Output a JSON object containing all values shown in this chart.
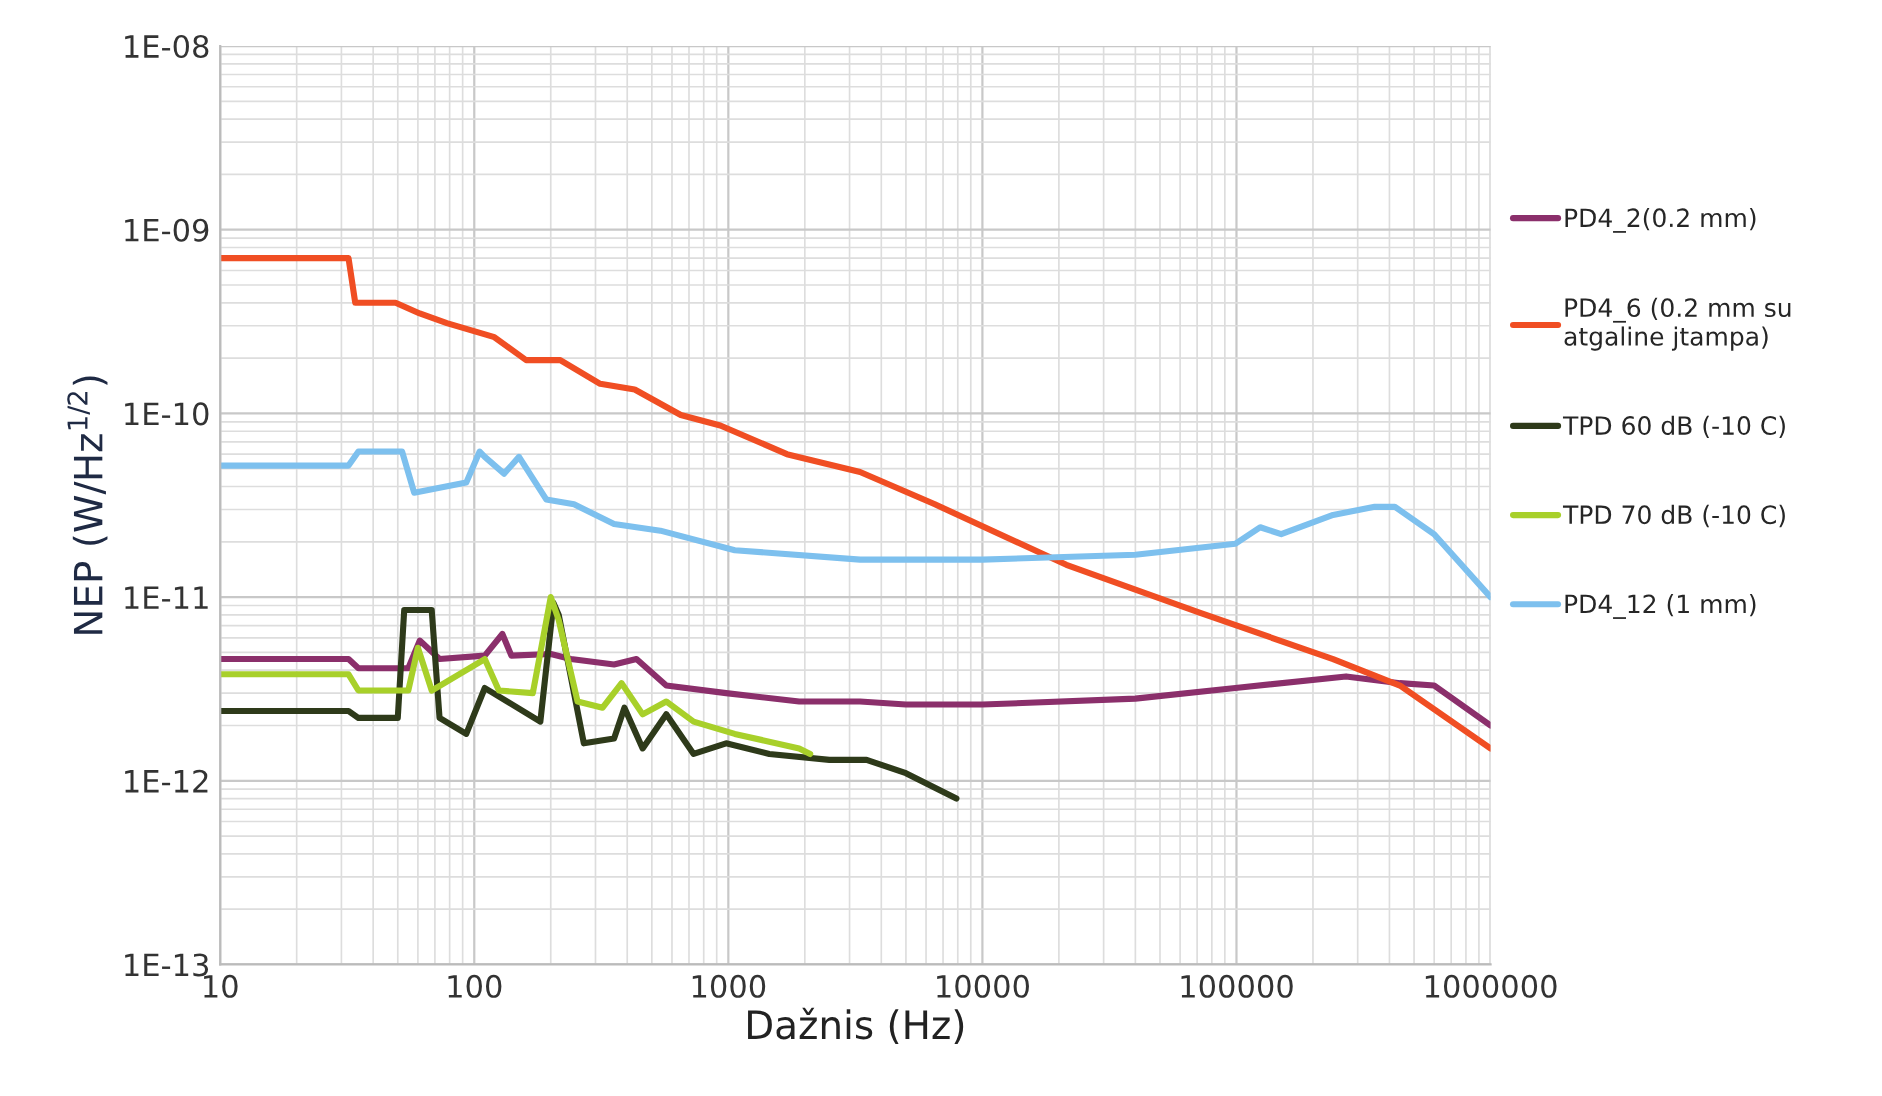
{
  "chart_data": {
    "type": "line",
    "xlabel": "Dažnis (Hz)",
    "ylabel": "NEP (W/Hz$^{1/2}$)",
    "log": "xy",
    "grid": true,
    "legend": "right",
    "marker": "none",
    "line_style": "solid",
    "xlim": [
      10,
      1000000
    ],
    "xticks": [
      10,
      100,
      1000,
      10000,
      100000,
      1000000
    ],
    "ylim": [
      1e-13,
      1e-08
    ],
    "yticks": [
      {
        "value": 1e-13,
        "label": "1E-13"
      },
      {
        "value": 1e-12,
        "label": "1E-12"
      },
      {
        "value": 1e-11,
        "label": "1E-11"
      },
      {
        "value": 1e-10,
        "label": "1E-10"
      },
      {
        "value": 1e-09,
        "label": "1E-09"
      },
      {
        "value": 1e-08,
        "label": "1E-08"
      }
    ],
    "series": [
      {
        "name": "PD4_2(0.2 mm)",
        "color": "#8b2f6b",
        "x": [
          10,
          32,
          35,
          55,
          61,
          73,
          110,
          129,
          140,
          200,
          240,
          355,
          435,
          570,
          980,
          1900,
          3300,
          5000,
          10000,
          40000,
          99000,
          270000,
          440000,
          600000,
          1000000
        ],
        "values": [
          4.6e-12,
          4.6e-12,
          4.1e-12,
          4.1e-12,
          5.8e-12,
          4.6e-12,
          4.8e-12,
          6.3e-12,
          4.8e-12,
          4.9e-12,
          4.6e-12,
          4.3e-12,
          4.6e-12,
          3.3e-12,
          3e-12,
          2.7e-12,
          2.7e-12,
          2.6e-12,
          2.6e-12,
          2.8e-12,
          3.2e-12,
          3.7e-12,
          3.4e-12,
          3.3e-12,
          2e-12
        ]
      },
      {
        "name": "PD4_6 (0.2 mm su\natgaline jtampa)",
        "color": "#f04e23",
        "x": [
          10,
          32,
          34,
          49,
          61,
          78,
          120,
          160,
          218,
          313,
          428,
          650,
          930,
          1700,
          3300,
          6500,
          21400,
          72000,
          240000,
          440000,
          1000000
        ],
        "values": [
          7e-10,
          7e-10,
          4e-10,
          4e-10,
          3.5e-10,
          3.1e-10,
          2.6e-10,
          1.95e-10,
          1.95e-10,
          1.45e-10,
          1.35e-10,
          9.8e-11,
          8.6e-11,
          6e-11,
          4.8e-11,
          3.2e-11,
          1.5e-11,
          8.2e-12,
          4.6e-12,
          3.3e-12,
          1.5e-12
        ]
      },
      {
        "name": "TPD 60 dB (-10 C)",
        "color": "#2e3a1a",
        "x": [
          10,
          32,
          35,
          50,
          53,
          68,
          73,
          93,
          110,
          135,
          182,
          205,
          215,
          270,
          355,
          390,
          460,
          570,
          730,
          980,
          1450,
          2500,
          3500,
          5000,
          7900
        ],
        "values": [
          2.4e-12,
          2.4e-12,
          2.2e-12,
          2.2e-12,
          8.5e-12,
          8.5e-12,
          2.2e-12,
          1.8e-12,
          3.2e-12,
          2.7e-12,
          2.1e-12,
          9.3e-12,
          8e-12,
          1.6e-12,
          1.7e-12,
          2.5e-12,
          1.5e-12,
          2.3e-12,
          1.4e-12,
          1.6e-12,
          1.4e-12,
          1.3e-12,
          1.3e-12,
          1.1e-12,
          8e-13
        ]
      },
      {
        "name": "TPD 70 dB (-10 C)",
        "color": "#a8d02a",
        "x": [
          10,
          32,
          35,
          55,
          60,
          68,
          110,
          125,
          170,
          200,
          215,
          255,
          320,
          380,
          460,
          570,
          730,
          1060,
          1900,
          2100
        ],
        "values": [
          3.8e-12,
          3.8e-12,
          3.1e-12,
          3.1e-12,
          5.3e-12,
          3.1e-12,
          4.6e-12,
          3.1e-12,
          3e-12,
          1e-11,
          7.5e-12,
          2.7e-12,
          2.5e-12,
          3.4e-12,
          2.3e-12,
          2.7e-12,
          2.1e-12,
          1.8e-12,
          1.5e-12,
          1.4e-12
        ]
      },
      {
        "name": "PD4_12 (1 mm)",
        "color": "#7dc0ee",
        "x": [
          10,
          32,
          35,
          52,
          58,
          93,
          105,
          110,
          131,
          150,
          192,
          247,
          355,
          540,
          1060,
          3300,
          10000,
          40000,
          99000,
          124000,
          150000,
          240000,
          350000,
          420000,
          600000,
          1000000
        ],
        "values": [
          5.2e-11,
          5.2e-11,
          6.2e-11,
          6.2e-11,
          3.7e-11,
          4.2e-11,
          6.2e-11,
          5.8e-11,
          4.7e-11,
          5.8e-11,
          3.4e-11,
          3.2e-11,
          2.5e-11,
          2.3e-11,
          1.8e-11,
          1.6e-11,
          1.6e-11,
          1.7e-11,
          1.95e-11,
          2.4e-11,
          2.2e-11,
          2.8e-11,
          3.1e-11,
          3.1e-11,
          2.2e-11,
          1e-11
        ]
      }
    ]
  }
}
